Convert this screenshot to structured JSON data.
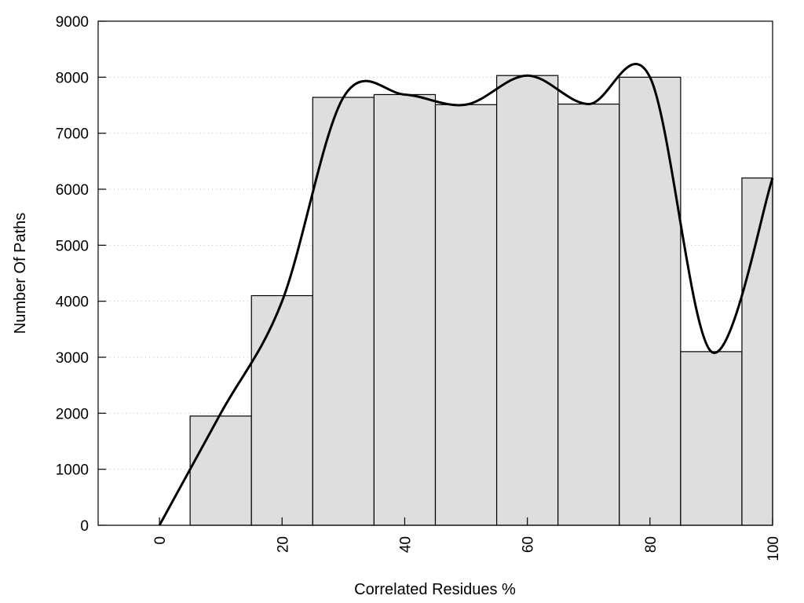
{
  "chart_data": {
    "type": "bar",
    "title": "",
    "xlabel": "Correlated Residues %",
    "ylabel": "Number Of Paths",
    "xlim": [
      -10,
      100
    ],
    "ylim": [
      0,
      9000
    ],
    "grid": "horizontal dotted",
    "xticks": [
      0,
      20,
      40,
      60,
      80,
      100
    ],
    "yticks": [
      0,
      1000,
      2000,
      3000,
      4000,
      5000,
      6000,
      7000,
      8000,
      9000
    ],
    "bar_color": "#dedede",
    "bars": [
      {
        "from": 5,
        "to": 15,
        "value": 1950
      },
      {
        "from": 15,
        "to": 25,
        "value": 4100
      },
      {
        "from": 25,
        "to": 35,
        "value": 7640
      },
      {
        "from": 35,
        "to": 45,
        "value": 7690
      },
      {
        "from": 45,
        "to": 55,
        "value": 7510
      },
      {
        "from": 55,
        "to": 65,
        "value": 8030
      },
      {
        "from": 65,
        "to": 75,
        "value": 7520
      },
      {
        "from": 75,
        "to": 85,
        "value": 8000
      },
      {
        "from": 85,
        "to": 95,
        "value": 3100
      },
      {
        "from": 95,
        "to": 100,
        "value": 6200
      }
    ],
    "curve": {
      "x": [
        0,
        10,
        20,
        30,
        40,
        50,
        60,
        70,
        80,
        90,
        100
      ],
      "y": [
        0,
        2000,
        4000,
        7640,
        7690,
        7510,
        8030,
        7520,
        8000,
        3100,
        6200
      ]
    }
  }
}
